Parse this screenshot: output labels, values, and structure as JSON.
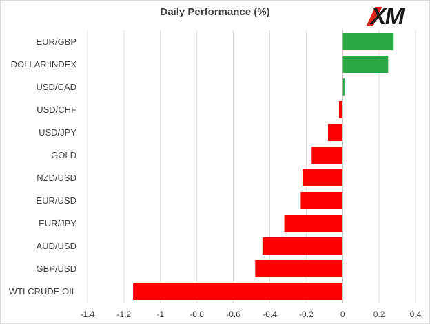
{
  "chart_data": {
    "type": "bar",
    "orientation": "horizontal",
    "title": "Daily Performance (%)",
    "categories": [
      "EUR/GBP",
      "DOLLAR INDEX",
      "USD/CAD",
      "USD/CHF",
      "USD/JPY",
      "GOLD",
      "NZD/USD",
      "EUR/USD",
      "EUR/JPY",
      "AUD/USD",
      "GBP/USD",
      "WTI CRUDE OIL"
    ],
    "values": [
      0.28,
      0.25,
      0.01,
      -0.02,
      -0.08,
      -0.17,
      -0.22,
      -0.23,
      -0.32,
      -0.44,
      -0.48,
      -1.15
    ],
    "xlim": [
      -1.4,
      0.4
    ],
    "xticks": [
      -1.4,
      -1.2,
      -1,
      -0.8,
      -0.6,
      -0.4,
      -0.2,
      0,
      0.2,
      0.4
    ],
    "xtick_labels": [
      "-1.4",
      "-1.2",
      "-1",
      "-0.8",
      "-0.6",
      "-0.4",
      "-0.2",
      "0",
      "0.2",
      "0.4"
    ],
    "grid": "vertical",
    "colors": {
      "positive": "#28a745",
      "negative": "#ff0000",
      "grid": "#d9d9d9"
    }
  },
  "logo": {
    "text": "XM"
  }
}
